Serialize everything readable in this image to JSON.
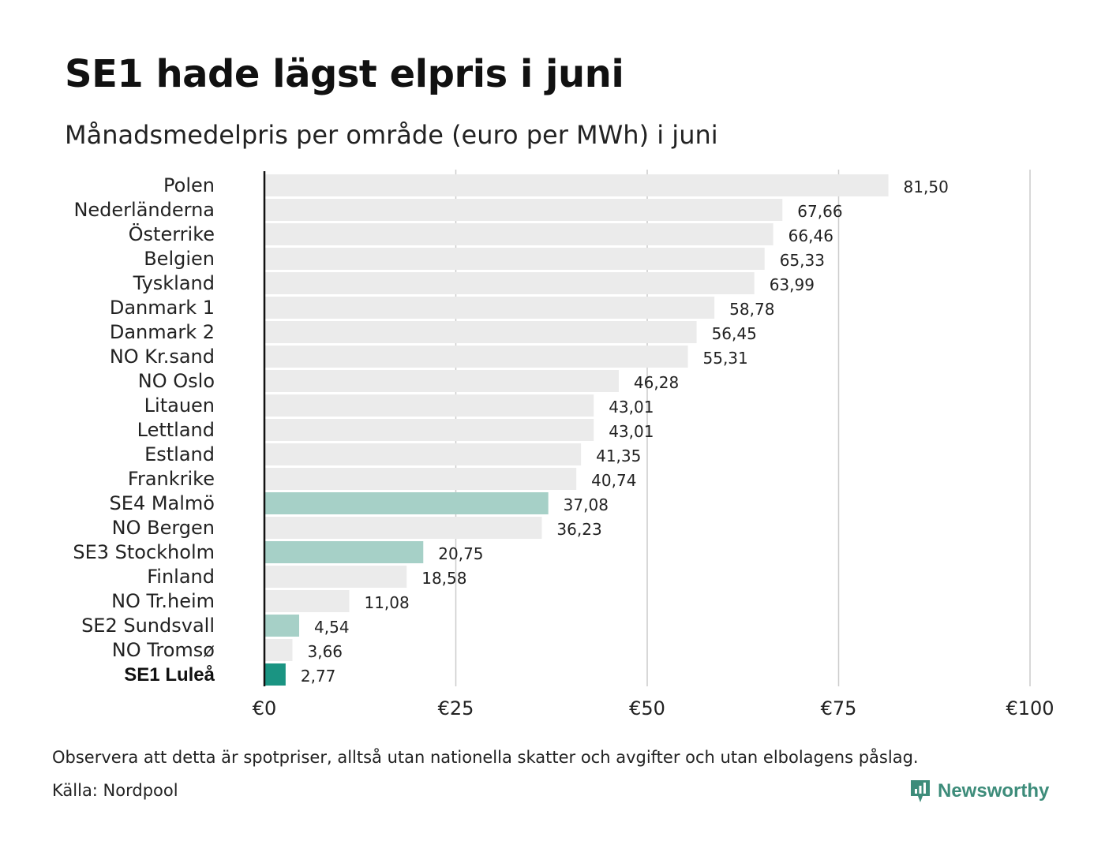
{
  "title": "SE1 hade lägst elpris i juni",
  "subtitle": "Månadsmedelpris per område (euro per MWh) i juni",
  "footnote": "Observera att detta är spotpriser, alltså utan nationella skatter och avgifter och utan elbolagens påslag.",
  "source": "Källa: Nordpool",
  "brand": {
    "name": "Newsworthy",
    "icon": "newsworthy-logo-icon",
    "color": "#3d8c7a"
  },
  "colors": {
    "default_bar": "#ebebeb",
    "highlight_bar": "#a6d0c7",
    "top_bar": "#1a9482",
    "gridline": "#cccccc",
    "axis": "#111111"
  },
  "chart_data": {
    "type": "bar",
    "orientation": "horizontal",
    "title": "SE1 hade lägst elpris i juni",
    "subtitle": "Månadsmedelpris per område (euro per MWh) i juni",
    "xlim": [
      0,
      100
    ],
    "xticks": [
      0,
      25,
      50,
      75,
      100
    ],
    "xtick_labels": [
      "€0",
      "€25",
      "€50",
      "€75",
      "€100"
    ],
    "grid": "vertical",
    "categories": [
      "Polen",
      "Nederländerna",
      "Österrike",
      "Belgien",
      "Tyskland",
      "Danmark  1",
      "Danmark  2",
      "NO Kr.sand",
      "NO Oslo",
      "Litauen",
      "Lettland",
      "Estland",
      "Frankrike",
      "SE4  Malmö",
      "NO Bergen",
      "SE3  Stockholm",
      "Finland",
      "NO Tr.heim",
      "SE2  Sundsvall",
      "NO Tromsø",
      "SE1 Luleå"
    ],
    "values": [
      81.5,
      67.66,
      66.46,
      65.33,
      63.99,
      58.78,
      56.45,
      55.31,
      46.28,
      43.01,
      43.01,
      41.35,
      40.74,
      37.08,
      36.23,
      20.75,
      18.58,
      11.08,
      4.54,
      3.66,
      2.77
    ],
    "value_labels": [
      "81,50",
      "67,66",
      "66,46",
      "65,33",
      "63,99",
      "58,78",
      "56,45",
      "55,31",
      "46,28",
      "43,01",
      "43,01",
      "41,35",
      "40,74",
      "37,08",
      "36,23",
      "20,75",
      "18,58",
      "11,08",
      "4,54",
      "3,66",
      "2,77"
    ],
    "highlight": [
      "default",
      "default",
      "default",
      "default",
      "default",
      "default",
      "default",
      "default",
      "default",
      "default",
      "default",
      "default",
      "default",
      "highlight",
      "default",
      "highlight",
      "default",
      "default",
      "highlight",
      "default",
      "top"
    ]
  }
}
